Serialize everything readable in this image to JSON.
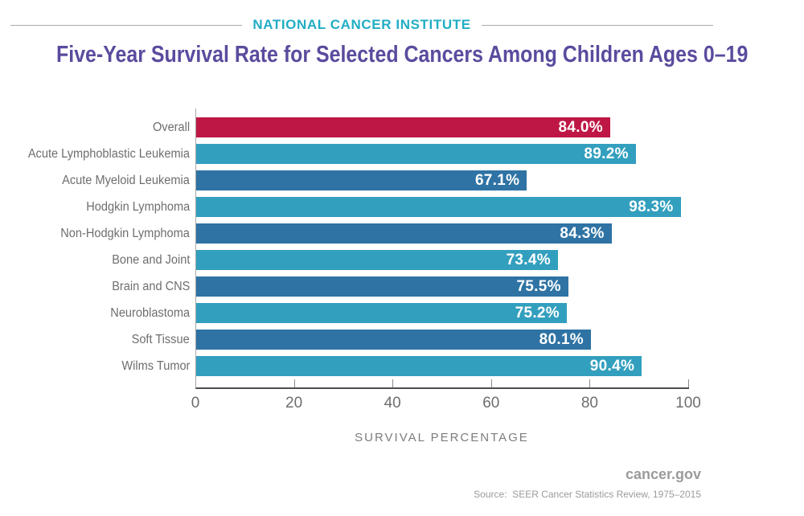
{
  "header": {
    "brand": "NATIONAL CANCER INSTITUTE",
    "title": "Five-Year Survival Rate for Selected Cancers Among Children Ages 0–19"
  },
  "chart_data": {
    "type": "bar",
    "orientation": "horizontal",
    "categories": [
      "Overall",
      "Acute Lymphoblastic Leukemia",
      "Acute Myeloid Leukemia",
      "Hodgkin Lymphoma",
      "Non-Hodgkin Lymphoma",
      "Bone and Joint",
      "Brain and CNS",
      "Neuroblastoma",
      "Soft Tissue",
      "Wilms Tumor"
    ],
    "values": [
      84.0,
      89.2,
      67.1,
      98.3,
      84.3,
      73.4,
      75.5,
      75.2,
      80.1,
      90.4
    ],
    "value_labels": [
      "84.0%",
      "89.2%",
      "67.1%",
      "98.3%",
      "84.3%",
      "73.4%",
      "75.5%",
      "75.2%",
      "80.1%",
      "90.4%"
    ],
    "bar_colors": [
      "#BE1745",
      "#339FBE",
      "#2E73A4",
      "#339FBE",
      "#2E73A4",
      "#339FBE",
      "#2E73A4",
      "#339FBE",
      "#2E73A4",
      "#339FBE"
    ],
    "xlabel": "SURVIVAL PERCENTAGE",
    "xlim": [
      0,
      100
    ],
    "xticks": [
      0,
      20,
      40,
      60,
      80,
      100
    ],
    "grid": false,
    "legend": "none",
    "value_label_position": "inside-end",
    "value_label_color": "#FFFFFF"
  },
  "footer": {
    "site": "cancer.gov",
    "source": "Source:  SEER Cancer Statistics Review, 1975–2015"
  },
  "colors": {
    "accent_red": "#BE1745",
    "light_blue": "#339FBE",
    "dark_blue": "#2E73A4",
    "brand_teal": "#21ADC5",
    "title_purple": "#5B4B9E",
    "label_gray": "#6E6E6E",
    "axis_gray": "#4E4E4E",
    "footer_gray": "#9B9B9B"
  }
}
